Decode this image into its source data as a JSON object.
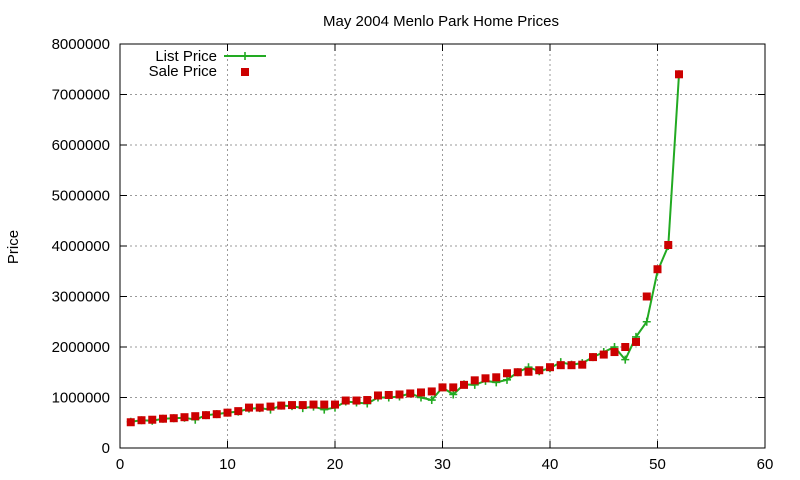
{
  "chart_data": {
    "type": "line",
    "title": "May 2004 Menlo Park Home Prices",
    "xlabel": "",
    "ylabel": "Price",
    "xlim": [
      0,
      60
    ],
    "ylim": [
      0,
      8000000
    ],
    "x_ticks": [
      "0",
      "10",
      "20",
      "30",
      "40",
      "50",
      "60"
    ],
    "y_ticks": [
      "0",
      "1000000",
      "2000000",
      "3000000",
      "4000000",
      "5000000",
      "6000000",
      "7000000",
      "8000000"
    ],
    "grid": true,
    "legend_position": "top-left",
    "x": [
      1,
      2,
      3,
      4,
      5,
      6,
      7,
      8,
      9,
      10,
      11,
      12,
      13,
      14,
      15,
      16,
      17,
      18,
      19,
      20,
      21,
      22,
      23,
      24,
      25,
      26,
      27,
      28,
      29,
      30,
      31,
      32,
      33,
      34,
      35,
      36,
      37,
      38,
      39,
      40,
      41,
      42,
      43,
      44,
      45,
      46,
      47,
      48,
      49,
      50,
      51,
      52
    ],
    "series": [
      {
        "name": "List Price",
        "style": "line-plus",
        "color": "#22aa22",
        "values": [
          520000,
          550000,
          540000,
          580000,
          590000,
          600000,
          560000,
          650000,
          670000,
          700000,
          720000,
          780000,
          790000,
          760000,
          840000,
          830000,
          790000,
          820000,
          760000,
          800000,
          920000,
          900000,
          880000,
          1000000,
          1000000,
          1020000,
          1080000,
          1000000,
          950000,
          1200000,
          1060000,
          1260000,
          1250000,
          1330000,
          1300000,
          1350000,
          1500000,
          1600000,
          1520000,
          1580000,
          1700000,
          1650000,
          1680000,
          1800000,
          1900000,
          2000000,
          1750000,
          2200000,
          2500000,
          3500000,
          4000000,
          7400000
        ]
      },
      {
        "name": "Sale Price",
        "style": "square",
        "color": "#cc0000",
        "values": [
          510000,
          550000,
          560000,
          580000,
          590000,
          610000,
          630000,
          650000,
          670000,
          700000,
          730000,
          800000,
          800000,
          820000,
          840000,
          850000,
          850000,
          860000,
          860000,
          860000,
          940000,
          940000,
          950000,
          1040000,
          1050000,
          1060000,
          1080000,
          1100000,
          1120000,
          1200000,
          1200000,
          1250000,
          1340000,
          1380000,
          1400000,
          1480000,
          1500000,
          1510000,
          1540000,
          1600000,
          1640000,
          1640000,
          1650000,
          1800000,
          1850000,
          1900000,
          2000000,
          2100000,
          3000000,
          3540000,
          4020000,
          7400000
        ]
      }
    ]
  }
}
